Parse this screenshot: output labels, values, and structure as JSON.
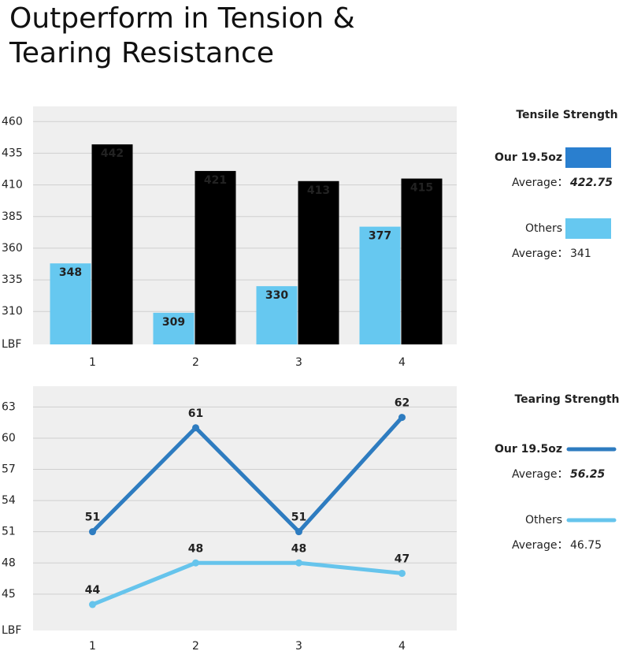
{
  "title": "Outperform in Tension & Tearing Resistance",
  "chart_data": [
    {
      "type": "bar",
      "legend_title": "Tensile Strength",
      "y_label": "LBF",
      "categories": [
        "1",
        "2",
        "3",
        "4"
      ],
      "series": [
        {
          "name": "Others",
          "color": "#66c8f0",
          "legend_color": "#66c8f0",
          "values": [
            348,
            309,
            330,
            377
          ],
          "average_label": "Average：",
          "average": 341
        },
        {
          "name": "Our 19.5oz",
          "color": "#000000",
          "legend_color": "#2a7fcf",
          "values": [
            442,
            421,
            413,
            415
          ],
          "average_label": "Average：",
          "average": 422.75
        }
      ],
      "ylim": [
        284,
        472
      ],
      "yticks": [
        310,
        335,
        360,
        385,
        410,
        435,
        460
      ],
      "grid": true
    },
    {
      "type": "line",
      "legend_title": "Tearing Strength",
      "y_label": "LBF",
      "categories": [
        "1",
        "2",
        "3",
        "4"
      ],
      "series": [
        {
          "name": "Others",
          "color": "#66c4ec",
          "legend_color": "#66c4ec",
          "values": [
            44,
            48,
            48,
            47
          ],
          "average_label": "Average：",
          "average": 46.75
        },
        {
          "name": "Our 19.5oz",
          "color": "#2e7cc0",
          "legend_color": "#2e7cc0",
          "values": [
            51,
            61,
            51,
            62
          ],
          "average_label": "Average：",
          "average": 56.25
        }
      ],
      "ylim": [
        41.5,
        65
      ],
      "yticks": [
        45,
        48,
        51,
        54,
        57,
        60,
        63
      ],
      "grid": true
    }
  ]
}
